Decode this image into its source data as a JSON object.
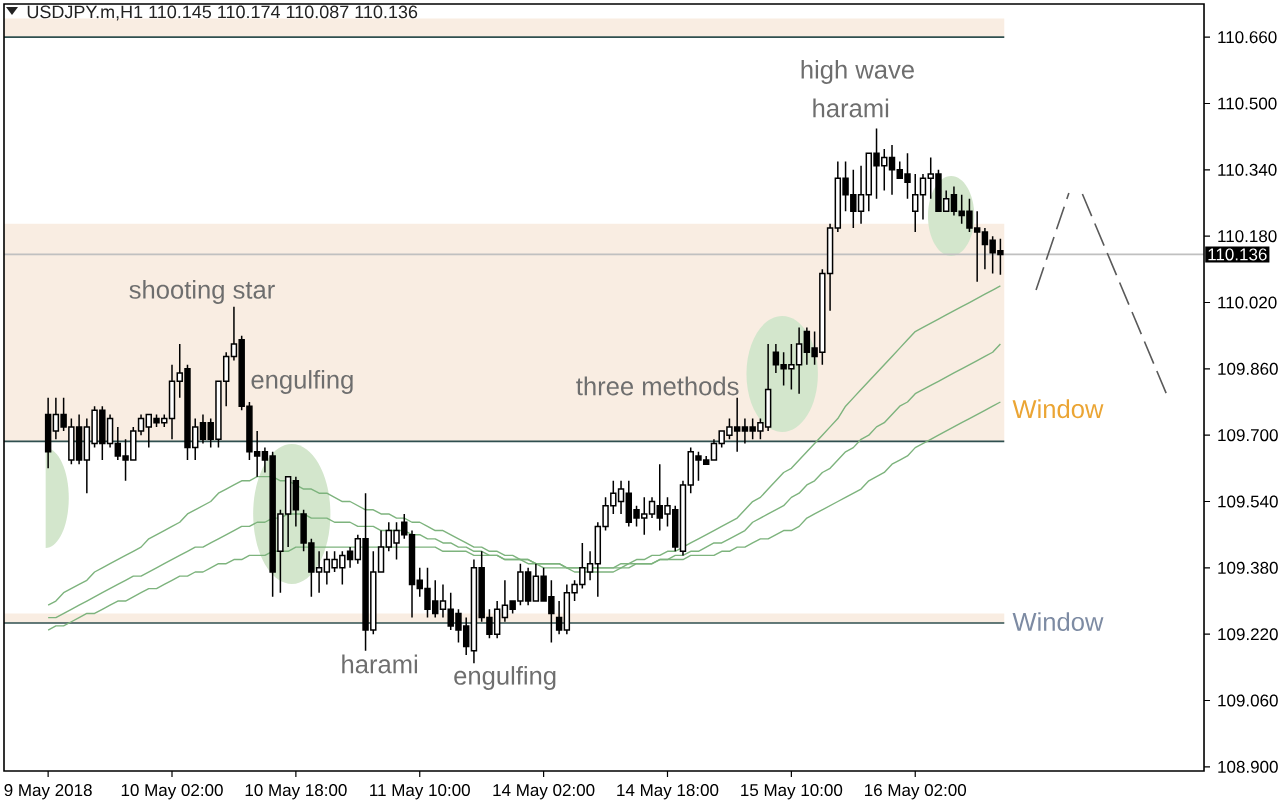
{
  "chart_data": {
    "type": "candlestick",
    "title": "USDJPY.m,H1 110.145 110.174 110.087 110.136",
    "categories": [
      "9 May 2018",
      null,
      null,
      null,
      null,
      null,
      null,
      null,
      null,
      null,
      null,
      null,
      null,
      null,
      null,
      null,
      "10 May 02:00",
      null,
      null,
      null,
      null,
      null,
      null,
      null,
      null,
      null,
      null,
      null,
      null,
      null,
      null,
      null,
      "10 May 18:00",
      null,
      null,
      null,
      null,
      null,
      null,
      null,
      null,
      null,
      null,
      null,
      null,
      null,
      null,
      null,
      "11 May 10:00",
      null,
      null,
      null,
      null,
      null,
      null,
      null,
      null,
      null,
      null,
      null,
      null,
      null,
      null,
      null,
      "14 May 02:00",
      null,
      null,
      null,
      null,
      null,
      null,
      null,
      null,
      null,
      null,
      null,
      null,
      null,
      null,
      null,
      "14 May 18:00",
      null,
      null,
      null,
      null,
      null,
      null,
      null,
      null,
      null,
      null,
      null,
      null,
      null,
      null,
      null,
      "15 May 10:00",
      null,
      null,
      null,
      null,
      null,
      null,
      null,
      null,
      null,
      null,
      null,
      null,
      null,
      null,
      null,
      "16 May 02:00",
      null,
      null,
      null,
      null,
      null,
      null,
      null,
      null,
      null,
      null,
      null
    ],
    "ohlc": [
      [
        109.75,
        109.79,
        109.62,
        109.66
      ],
      [
        109.71,
        109.79,
        109.69,
        109.75
      ],
      [
        109.75,
        109.79,
        109.71,
        109.72
      ],
      [
        109.64,
        109.74,
        109.63,
        109.72
      ],
      [
        109.72,
        109.75,
        109.63,
        109.64
      ],
      [
        109.64,
        109.74,
        109.56,
        109.72
      ],
      [
        109.68,
        109.77,
        109.67,
        109.76
      ],
      [
        109.76,
        109.77,
        109.64,
        109.68
      ],
      [
        109.68,
        109.75,
        109.67,
        109.74
      ],
      [
        109.68,
        109.72,
        109.64,
        109.65
      ],
      [
        109.65,
        109.69,
        109.59,
        109.64
      ],
      [
        109.64,
        109.72,
        109.64,
        109.71
      ],
      [
        109.71,
        109.75,
        109.7,
        109.74
      ],
      [
        109.72,
        109.75,
        109.67,
        109.75
      ],
      [
        109.74,
        109.75,
        109.72,
        109.73
      ],
      [
        109.73,
        109.75,
        109.72,
        109.74
      ],
      [
        109.74,
        109.87,
        109.69,
        109.83
      ],
      [
        109.83,
        109.92,
        109.79,
        109.85
      ],
      [
        109.86,
        109.87,
        109.64,
        109.67
      ],
      [
        109.67,
        109.74,
        109.64,
        109.72
      ],
      [
        109.73,
        109.75,
        109.68,
        109.69
      ],
      [
        109.73,
        109.74,
        109.67,
        109.69
      ],
      [
        109.69,
        109.83,
        109.67,
        109.83
      ],
      [
        109.83,
        109.9,
        109.77,
        109.89
      ],
      [
        109.89,
        110.01,
        109.88,
        109.92
      ],
      [
        109.93,
        109.94,
        109.76,
        109.77
      ],
      [
        109.77,
        109.78,
        109.64,
        109.66
      ],
      [
        109.66,
        109.71,
        109.6,
        109.65
      ],
      [
        109.66,
        109.67,
        109.61,
        109.64
      ],
      [
        109.65,
        109.66,
        109.31,
        109.37
      ],
      [
        109.42,
        109.52,
        109.32,
        109.51
      ],
      [
        109.51,
        109.6,
        109.43,
        109.6
      ],
      [
        109.59,
        109.6,
        109.48,
        109.52
      ],
      [
        109.51,
        109.52,
        109.42,
        109.44
      ],
      [
        109.44,
        109.45,
        109.31,
        109.37
      ],
      [
        109.37,
        109.42,
        109.32,
        109.38
      ],
      [
        109.37,
        109.42,
        109.34,
        109.4
      ],
      [
        109.38,
        109.42,
        109.37,
        109.4
      ],
      [
        109.38,
        109.42,
        109.34,
        109.41
      ],
      [
        109.42,
        109.43,
        109.38,
        109.4
      ],
      [
        109.4,
        109.46,
        109.39,
        109.45
      ],
      [
        109.45,
        109.56,
        109.18,
        109.23
      ],
      [
        109.23,
        109.42,
        109.22,
        109.37
      ],
      [
        109.37,
        109.47,
        109.37,
        109.43
      ],
      [
        109.43,
        109.49,
        109.42,
        109.47
      ],
      [
        109.44,
        109.49,
        109.4,
        109.47
      ],
      [
        109.49,
        109.51,
        109.45,
        109.46
      ],
      [
        109.46,
        109.47,
        109.26,
        109.34
      ],
      [
        109.35,
        109.38,
        109.31,
        109.33
      ],
      [
        109.33,
        109.38,
        109.26,
        109.28
      ],
      [
        109.3,
        109.35,
        109.26,
        109.27
      ],
      [
        109.28,
        109.34,
        109.26,
        109.3
      ],
      [
        109.28,
        109.32,
        109.23,
        109.24
      ],
      [
        109.27,
        109.28,
        109.2,
        109.23
      ],
      [
        109.24,
        109.26,
        109.17,
        109.19
      ],
      [
        109.18,
        109.4,
        109.15,
        109.38
      ],
      [
        109.38,
        109.42,
        109.25,
        109.26
      ],
      [
        109.26,
        109.28,
        109.21,
        109.22
      ],
      [
        109.22,
        109.3,
        109.21,
        109.28
      ],
      [
        109.26,
        109.35,
        109.25,
        109.29
      ],
      [
        109.3,
        109.3,
        109.27,
        109.28
      ],
      [
        109.3,
        109.39,
        109.29,
        109.37
      ],
      [
        109.37,
        109.38,
        109.29,
        109.3
      ],
      [
        109.3,
        109.39,
        109.3,
        109.36
      ],
      [
        109.36,
        109.38,
        109.3,
        109.3
      ],
      [
        109.31,
        109.35,
        109.2,
        109.27
      ],
      [
        109.26,
        109.3,
        109.22,
        109.23
      ],
      [
        109.23,
        109.34,
        109.22,
        109.32
      ],
      [
        109.32,
        109.35,
        109.3,
        109.34
      ],
      [
        109.34,
        109.44,
        109.33,
        109.38
      ],
      [
        109.37,
        109.42,
        109.35,
        109.39
      ],
      [
        109.39,
        109.49,
        109.31,
        109.48
      ],
      [
        109.48,
        109.55,
        109.47,
        109.53
      ],
      [
        109.53,
        109.59,
        109.51,
        109.56
      ],
      [
        109.54,
        109.59,
        109.51,
        109.57
      ],
      [
        109.56,
        109.59,
        109.48,
        109.49
      ],
      [
        109.52,
        109.53,
        109.48,
        109.5
      ],
      [
        109.5,
        109.55,
        109.46,
        109.51
      ],
      [
        109.51,
        109.55,
        109.5,
        109.54
      ],
      [
        109.53,
        109.63,
        109.47,
        109.5
      ],
      [
        109.51,
        109.55,
        109.48,
        109.53
      ],
      [
        109.52,
        109.53,
        109.42,
        109.43
      ],
      [
        109.42,
        109.59,
        109.41,
        109.58
      ],
      [
        109.58,
        109.67,
        109.56,
        109.66
      ],
      [
        109.65,
        109.66,
        109.59,
        109.64
      ],
      [
        109.64,
        109.65,
        109.63,
        109.63
      ],
      [
        109.64,
        109.69,
        109.64,
        109.68
      ],
      [
        109.68,
        109.71,
        109.67,
        109.71
      ],
      [
        109.7,
        109.74,
        109.69,
        109.72
      ],
      [
        109.72,
        109.79,
        109.66,
        109.71
      ],
      [
        109.72,
        109.74,
        109.68,
        109.71
      ],
      [
        109.72,
        109.74,
        109.69,
        109.71
      ],
      [
        109.71,
        109.74,
        109.69,
        109.73
      ],
      [
        109.72,
        109.92,
        109.71,
        109.81
      ],
      [
        109.9,
        109.92,
        109.85,
        109.87
      ],
      [
        109.87,
        109.9,
        109.82,
        109.86
      ],
      [
        109.86,
        109.92,
        109.81,
        109.87
      ],
      [
        109.87,
        109.96,
        109.8,
        109.92
      ],
      [
        109.95,
        109.96,
        109.87,
        109.9
      ],
      [
        109.91,
        109.95,
        109.87,
        109.89
      ],
      [
        109.9,
        110.1,
        109.87,
        110.09
      ],
      [
        110.09,
        110.21,
        110.0,
        110.2
      ],
      [
        110.2,
        110.36,
        110.19,
        110.32
      ],
      [
        110.32,
        110.36,
        110.24,
        110.28
      ],
      [
        110.28,
        110.34,
        110.2,
        110.24
      ],
      [
        110.24,
        110.35,
        110.21,
        110.28
      ],
      [
        110.28,
        110.38,
        110.24,
        110.38
      ],
      [
        110.38,
        110.44,
        110.27,
        110.35
      ],
      [
        110.35,
        110.39,
        110.29,
        110.37
      ],
      [
        110.37,
        110.4,
        110.28,
        110.34
      ],
      [
        110.34,
        110.36,
        110.32,
        110.32
      ],
      [
        110.33,
        110.38,
        110.27,
        110.31
      ],
      [
        110.24,
        110.33,
        110.19,
        110.28
      ],
      [
        110.28,
        110.33,
        110.22,
        110.32
      ],
      [
        110.32,
        110.37,
        110.27,
        110.33
      ],
      [
        110.33,
        110.34,
        110.24,
        110.24
      ],
      [
        110.24,
        110.29,
        110.24,
        110.27
      ],
      [
        110.28,
        110.3,
        110.23,
        110.24
      ],
      [
        110.24,
        110.28,
        110.21,
        110.23
      ],
      [
        110.24,
        110.27,
        110.19,
        110.2
      ],
      [
        110.2,
        110.24,
        110.07,
        110.19
      ],
      [
        110.19,
        110.2,
        110.1,
        110.16
      ],
      [
        110.17,
        110.18,
        110.09,
        110.14
      ],
      [
        110.145,
        110.174,
        110.087,
        110.136
      ]
    ],
    "series": [
      {
        "type": "line",
        "color": "#7db37d",
        "values": [
          109.29,
          109.3,
          109.32,
          109.33,
          109.34,
          109.35,
          109.37,
          109.38,
          109.39,
          109.4,
          109.41,
          109.42,
          109.43,
          109.45,
          109.46,
          109.47,
          109.48,
          109.49,
          109.51,
          109.52,
          109.53,
          109.54,
          109.56,
          109.57,
          109.58,
          109.59,
          109.59,
          109.6,
          109.6,
          109.6,
          109.59,
          109.59,
          109.58,
          109.57,
          109.57,
          109.56,
          109.56,
          109.55,
          109.54,
          109.54,
          109.53,
          109.52,
          109.52,
          109.51,
          109.51,
          109.5,
          109.5,
          109.49,
          109.49,
          109.48,
          109.47,
          109.47,
          109.46,
          109.45,
          109.44,
          109.43,
          109.43,
          109.42,
          109.42,
          109.41,
          109.41,
          109.4,
          109.4,
          109.39,
          109.39,
          109.39,
          109.39,
          109.38,
          109.38,
          109.38,
          109.38,
          109.38,
          109.38,
          109.38,
          109.39,
          109.39,
          109.4,
          109.4,
          109.41,
          109.41,
          109.42,
          109.42,
          109.43,
          109.44,
          109.45,
          109.46,
          109.47,
          109.48,
          109.49,
          109.5,
          109.52,
          109.54,
          109.55,
          109.57,
          109.59,
          109.61,
          109.62,
          109.64,
          109.66,
          109.68,
          109.7,
          109.72,
          109.74,
          109.77,
          109.79,
          109.81,
          109.83,
          109.85,
          109.87,
          109.89,
          109.91,
          109.93,
          109.95,
          109.96,
          109.97,
          109.98,
          109.99,
          110.0,
          110.01,
          110.02,
          110.03,
          110.04,
          110.05,
          110.06
        ]
      },
      {
        "type": "line",
        "color": "#7db37d",
        "values": [
          109.26,
          109.26,
          109.27,
          109.28,
          109.29,
          109.3,
          109.31,
          109.32,
          109.33,
          109.34,
          109.35,
          109.36,
          109.36,
          109.37,
          109.38,
          109.39,
          109.4,
          109.41,
          109.42,
          109.43,
          109.43,
          109.44,
          109.45,
          109.46,
          109.47,
          109.48,
          109.48,
          109.49,
          109.49,
          109.5,
          109.5,
          109.51,
          109.51,
          109.51,
          109.5,
          109.5,
          109.5,
          109.49,
          109.49,
          109.49,
          109.48,
          109.48,
          109.48,
          109.47,
          109.47,
          109.47,
          109.47,
          109.46,
          109.46,
          109.45,
          109.45,
          109.44,
          109.44,
          109.43,
          109.43,
          109.42,
          109.42,
          109.41,
          109.41,
          109.4,
          109.4,
          109.4,
          109.39,
          109.39,
          109.38,
          109.38,
          109.38,
          109.38,
          109.37,
          109.37,
          109.37,
          109.37,
          109.37,
          109.37,
          109.38,
          109.38,
          109.39,
          109.39,
          109.39,
          109.4,
          109.4,
          109.41,
          109.41,
          109.42,
          109.42,
          109.43,
          109.44,
          109.44,
          109.45,
          109.46,
          109.47,
          109.49,
          109.5,
          109.51,
          109.52,
          109.53,
          109.55,
          109.56,
          109.58,
          109.59,
          109.61,
          109.62,
          109.64,
          109.66,
          109.67,
          109.69,
          109.7,
          109.72,
          109.73,
          109.75,
          109.77,
          109.78,
          109.8,
          109.81,
          109.82,
          109.83,
          109.84,
          109.85,
          109.86,
          109.87,
          109.88,
          109.89,
          109.9,
          109.92
        ]
      },
      {
        "type": "line",
        "color": "#7db37d",
        "values": [
          109.23,
          109.24,
          109.24,
          109.25,
          109.26,
          109.27,
          109.27,
          109.28,
          109.29,
          109.3,
          109.3,
          109.31,
          109.32,
          109.33,
          109.33,
          109.34,
          109.35,
          109.36,
          109.36,
          109.37,
          109.37,
          109.38,
          109.39,
          109.39,
          109.4,
          109.4,
          109.41,
          109.41,
          109.41,
          109.42,
          109.42,
          109.42,
          109.43,
          109.43,
          109.43,
          109.43,
          109.43,
          109.43,
          109.43,
          109.43,
          109.43,
          109.43,
          109.43,
          109.43,
          109.43,
          109.43,
          109.43,
          109.43,
          109.43,
          109.43,
          109.43,
          109.42,
          109.42,
          109.42,
          109.42,
          109.41,
          109.41,
          109.41,
          109.41,
          109.4,
          109.4,
          109.4,
          109.4,
          109.39,
          109.39,
          109.39,
          109.39,
          109.38,
          109.38,
          109.38,
          109.38,
          109.38,
          109.38,
          109.38,
          109.38,
          109.39,
          109.39,
          109.39,
          109.39,
          109.4,
          109.4,
          109.4,
          109.4,
          109.41,
          109.41,
          109.41,
          109.41,
          109.42,
          109.42,
          109.43,
          109.43,
          109.44,
          109.45,
          109.45,
          109.46,
          109.47,
          109.47,
          109.48,
          109.5,
          109.51,
          109.52,
          109.53,
          109.54,
          109.55,
          109.56,
          109.57,
          109.59,
          109.6,
          109.61,
          109.63,
          109.64,
          109.65,
          109.67,
          109.68,
          109.69,
          109.7,
          109.71,
          109.72,
          109.73,
          109.74,
          109.75,
          109.76,
          109.77,
          109.78
        ]
      }
    ],
    "ylim": [
      108.89,
      110.74
    ],
    "yticks": [
      {
        "value": 110.66,
        "label": "110.660"
      },
      {
        "value": 110.5,
        "label": "110.500"
      },
      {
        "value": 110.34,
        "label": "110.340"
      },
      {
        "value": 110.18,
        "label": "110.180"
      },
      {
        "value": 110.02,
        "label": "110.020"
      },
      {
        "value": 109.86,
        "label": "109.860"
      },
      {
        "value": 109.7,
        "label": "109.700"
      },
      {
        "value": 109.54,
        "label": "109.540"
      },
      {
        "value": 109.38,
        "label": "109.380"
      },
      {
        "value": 109.22,
        "label": "109.220"
      },
      {
        "value": 109.06,
        "label": "109.060"
      },
      {
        "value": 108.9,
        "label": "108.900"
      }
    ],
    "bands": [
      {
        "axis": "y",
        "from": 109.685,
        "to": 110.21,
        "label": "Window",
        "color": "#f9ede2"
      },
      {
        "axis": "y",
        "from": 109.247,
        "to": 109.27,
        "label": "Window",
        "color": "#f9ede2"
      },
      {
        "axis": "y",
        "from": 110.66,
        "to": 110.705,
        "color": "#f9ede2"
      }
    ],
    "ref_lines": [
      {
        "axis": "y",
        "value": 110.66,
        "color": "#2f4f4f"
      },
      {
        "axis": "y",
        "value": 109.685,
        "color": "#2f4f4f"
      },
      {
        "axis": "y",
        "value": 109.247,
        "color": "#2f4f4f"
      },
      {
        "axis": "y",
        "value": 110.136,
        "label": "110.136",
        "color": "#c0c0c0"
      }
    ],
    "annotations": [
      "shooting star",
      "engulfing",
      "harami",
      "engulfing",
      "three methods",
      "high wave",
      "harami"
    ]
  }
}
